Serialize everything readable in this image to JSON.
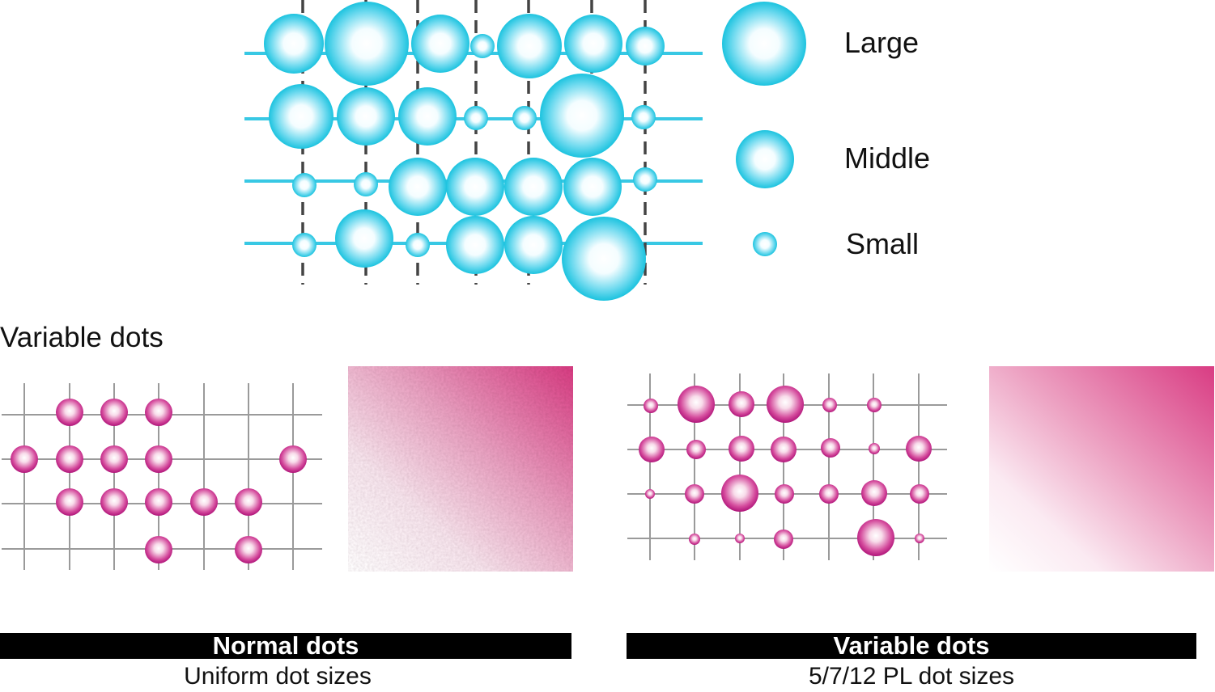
{
  "legend": {
    "large": "Large",
    "middle": "Middle",
    "small": "Small"
  },
  "section_title": "Variable dots",
  "normal": {
    "banner": "Normal dots",
    "caption": "Uniform dot sizes"
  },
  "variable": {
    "banner": "Variable dots",
    "caption": "5/7/12 PL dot sizes"
  },
  "colors": {
    "cyan_dot": "#22c7e0",
    "cyan_line": "#38c8e4",
    "magenta_dot": "#b8167d",
    "magenta_ramp": "#d93c83",
    "grid_gray": "#9a9a9a",
    "dash_gray": "#444444",
    "banner_bg": "#000000",
    "banner_text": "#ffffff"
  }
}
